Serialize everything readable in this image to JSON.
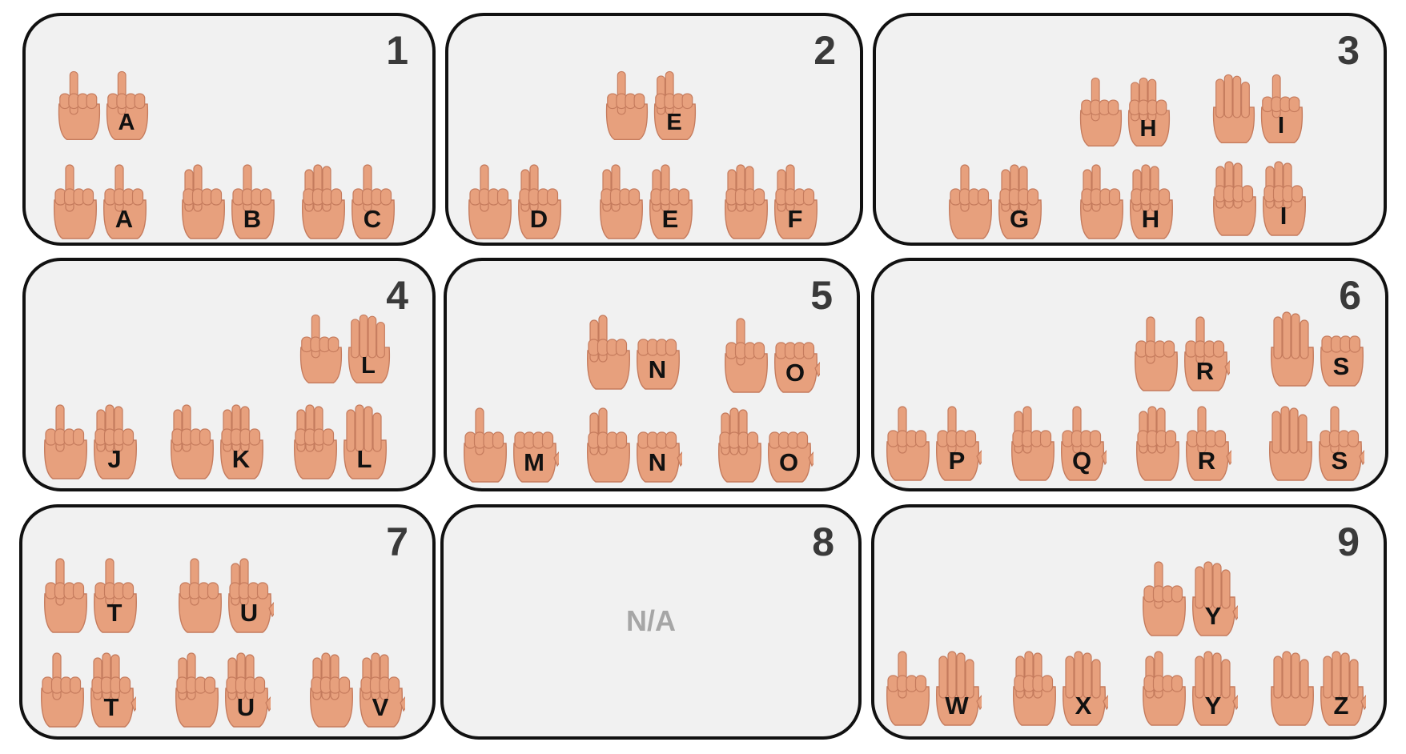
{
  "colors": {
    "panel_fill": "#f1f1f1",
    "panel_border": "#111111",
    "number_text": "#3a3a3a",
    "na_text": "#a6a6a6",
    "skin": "#e7a07d",
    "skin_shadow": "#c57b5d"
  },
  "panels": [
    {
      "number": "1",
      "top_row": [
        "A"
      ],
      "bottom_row": [
        "A",
        "B",
        "C"
      ]
    },
    {
      "number": "2",
      "top_row": [
        "E"
      ],
      "bottom_row": [
        "D",
        "E",
        "F"
      ]
    },
    {
      "number": "3",
      "top_row": [
        "H",
        "I"
      ],
      "bottom_row": [
        "G",
        "H",
        "I"
      ]
    },
    {
      "number": "4",
      "top_row": [
        "L"
      ],
      "bottom_row": [
        "J",
        "K",
        "L"
      ]
    },
    {
      "number": "5",
      "top_row": [
        "N",
        "O"
      ],
      "bottom_row": [
        "M",
        "N",
        "O"
      ]
    },
    {
      "number": "6",
      "top_row": [
        "R",
        "S"
      ],
      "bottom_row": [
        "P",
        "Q",
        "R",
        "S"
      ]
    },
    {
      "number": "7",
      "top_row": [
        "T",
        "U"
      ],
      "bottom_row": [
        "T",
        "U",
        "V"
      ]
    },
    {
      "number": "8",
      "label": "N/A"
    },
    {
      "number": "9",
      "top_row": [
        "Y"
      ],
      "bottom_row": [
        "W",
        "X",
        "Y",
        "Z"
      ]
    }
  ]
}
